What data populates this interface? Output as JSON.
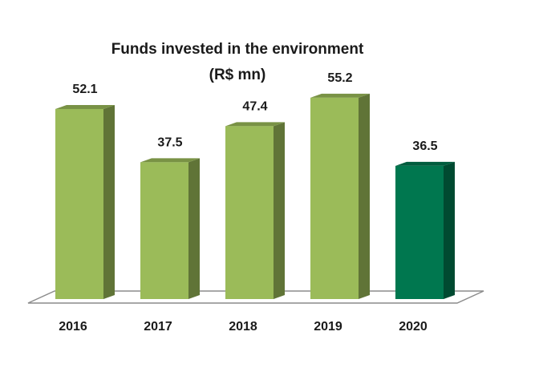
{
  "chart_data": {
    "type": "bar",
    "title": "Funds invested in the environment",
    "subtitle": "(R$ mn)",
    "categories": [
      "2016",
      "2017",
      "2018",
      "2019",
      "2020"
    ],
    "values": [
      52.1,
      37.5,
      47.4,
      55.2,
      36.5
    ],
    "value_labels": [
      "52.1",
      "37.5",
      "47.4",
      "55.2",
      "36.5"
    ],
    "ylim": [
      0,
      60
    ],
    "grid": false,
    "legend": "none",
    "colors": {
      "bar_default": "#9BBB59",
      "bar_highlight": "#00774F",
      "floor": "#ffffff",
      "floor_edge": "#8c8c8c"
    },
    "highlight_category": "2020"
  }
}
